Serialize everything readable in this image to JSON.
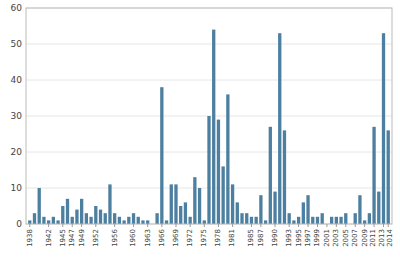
{
  "chart_data": {
    "type": "bar",
    "x": [
      1938,
      1939,
      1940,
      1941,
      1942,
      1943,
      1944,
      1945,
      1946,
      1947,
      1948,
      1949,
      1950,
      1951,
      1952,
      1953,
      1954,
      1955,
      1956,
      1957,
      1958,
      1959,
      1960,
      1961,
      1962,
      1963,
      1964,
      1965,
      1966,
      1967,
      1968,
      1969,
      1970,
      1971,
      1972,
      1973,
      1974,
      1975,
      1976,
      1977,
      1978,
      1979,
      1980,
      1981,
      1982,
      1983,
      1984,
      1985,
      1986,
      1987,
      1988,
      1989,
      1990,
      1991,
      1992,
      1993,
      1994,
      1995,
      1996,
      1997,
      1998,
      1999,
      2000,
      2001,
      2002,
      2003,
      2004,
      2005,
      2006,
      2007,
      2008,
      2009,
      2010,
      2011,
      2012,
      2013,
      2014
    ],
    "values": [
      1,
      3,
      10,
      2,
      1,
      2,
      1,
      5,
      7,
      2,
      4,
      7,
      3,
      2,
      5,
      4,
      3,
      11,
      3,
      2,
      1,
      2,
      3,
      2,
      1,
      1,
      0,
      3,
      38,
      1,
      11,
      11,
      5,
      6,
      2,
      13,
      10,
      1,
      30,
      54,
      29,
      16,
      36,
      11,
      6,
      3,
      3,
      2,
      2,
      8,
      1,
      27,
      9,
      53,
      26,
      3,
      1,
      2,
      6,
      8,
      2,
      2,
      3,
      0,
      2,
      2,
      2,
      3,
      0,
      3,
      8,
      1,
      3,
      27,
      9,
      53,
      26
    ],
    "color": "#4d7fa0",
    "xlim": [
      1937.2,
      2014.8
    ],
    "xticks": [
      1938,
      1942,
      1945,
      1947,
      1949,
      1952,
      1956,
      1960,
      1963,
      1966,
      1969,
      1972,
      1975,
      1978,
      1981,
      1985,
      1987,
      1990,
      1993,
      1995,
      1997,
      1999,
      2001,
      2003,
      2005,
      2007,
      2009,
      2011,
      2013,
      2014
    ],
    "ylim": [
      0,
      60
    ],
    "yticks": [
      0,
      10,
      20,
      30,
      40,
      50,
      60
    ],
    "grid": true
  }
}
